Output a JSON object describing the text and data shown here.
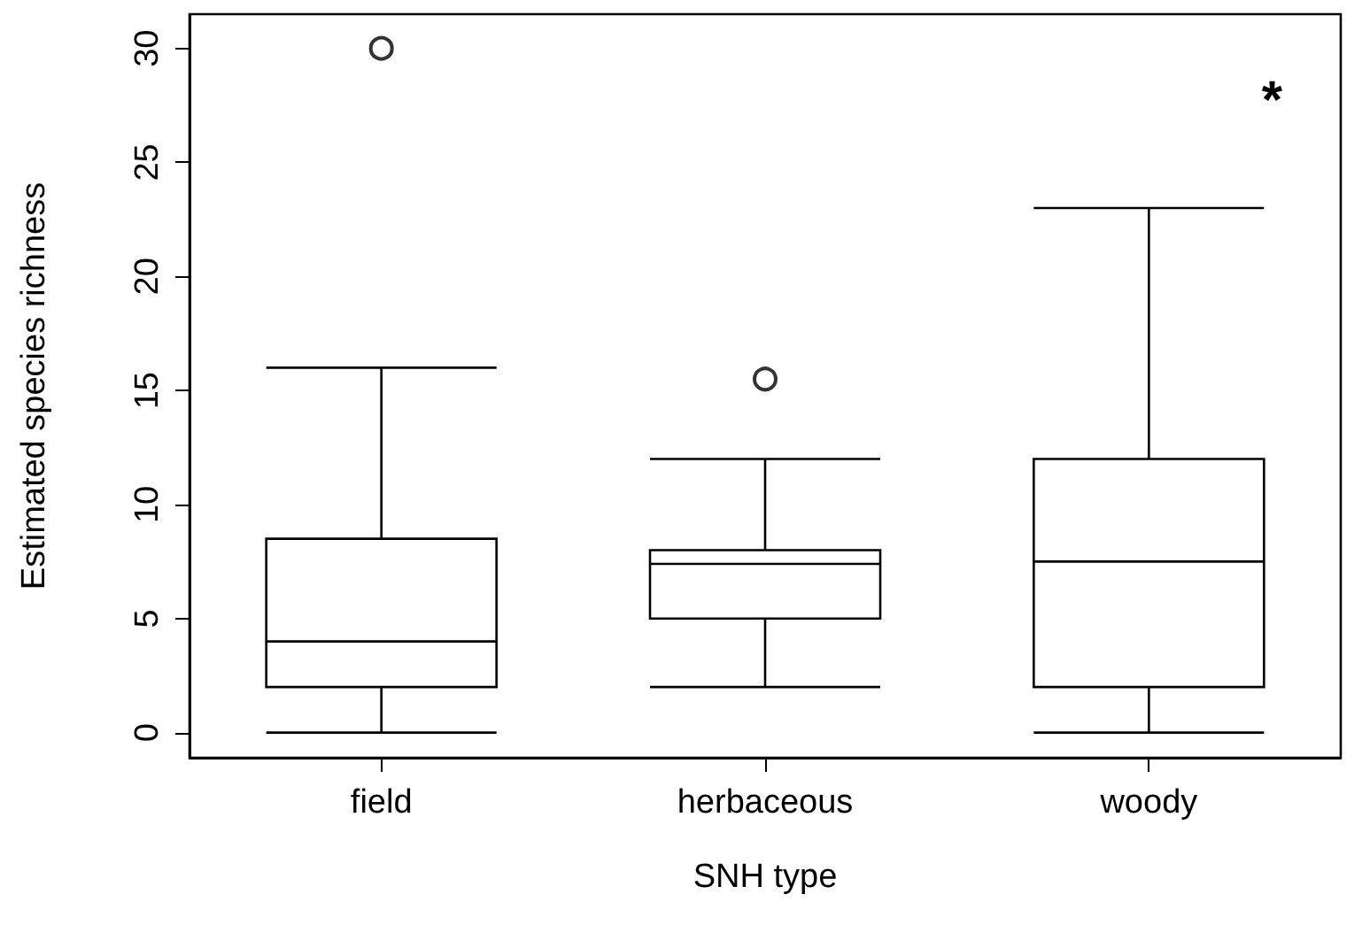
{
  "chart_data": {
    "type": "box",
    "xlabel": "SNH type",
    "ylabel": "Estimated species richness",
    "categories": [
      "field",
      "herbaceous",
      "woody"
    ],
    "boxes": [
      {
        "low": 0,
        "q1": 2,
        "median": 4,
        "q3": 8.5,
        "high": 16,
        "outliers": [
          30
        ]
      },
      {
        "low": 2,
        "q1": 5,
        "median": 7.4,
        "q3": 8,
        "high": 12,
        "outliers": [
          15.5
        ]
      },
      {
        "low": 0,
        "q1": 2,
        "median": 7.5,
        "q3": 12,
        "high": 23
      }
    ],
    "color": "#ffffff",
    "ylim": [
      -1.1,
      31.5
    ],
    "yticks": [
      0,
      5,
      10,
      15,
      20,
      25,
      30
    ],
    "grid": false,
    "annotations": [
      "*"
    ]
  }
}
